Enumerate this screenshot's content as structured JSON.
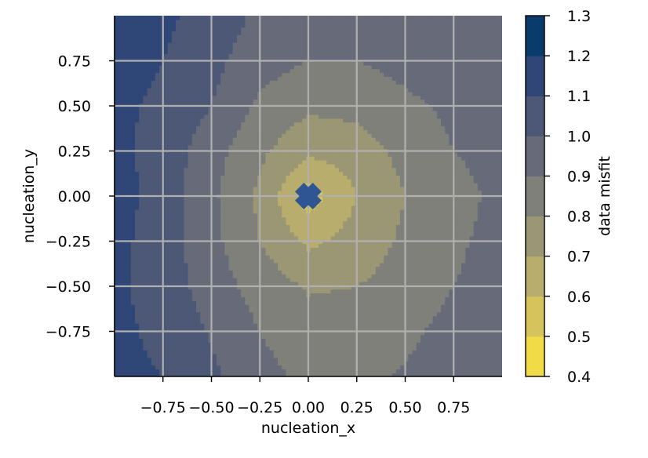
{
  "chart_data": {
    "type": "contour",
    "xlabel": "nucleation_x",
    "ylabel": "nucleation_y",
    "xlim": [
      -1.0,
      1.0
    ],
    "ylim": [
      -1.0,
      1.0
    ],
    "xticks": [
      -0.75,
      -0.5,
      -0.25,
      0.0,
      0.25,
      0.5,
      0.75
    ],
    "xtick_labels": [
      "−0.75",
      "−0.50",
      "−0.25",
      "0.00",
      "0.25",
      "0.50",
      "0.75"
    ],
    "yticks": [
      -0.75,
      -0.5,
      -0.25,
      0.0,
      0.25,
      0.5,
      0.75
    ],
    "ytick_labels": [
      "−0.75",
      "−0.50",
      "−0.25",
      "0.00",
      "0.25",
      "0.50",
      "0.75"
    ],
    "grid": true,
    "colormap": "cividis (reversed)",
    "colorbar": {
      "label": "data misfit",
      "levels": [
        0.4,
        0.5,
        0.6,
        0.7,
        0.8,
        0.9,
        1.0,
        1.1,
        1.2,
        1.3
      ],
      "tick_labels": [
        "0.4",
        "0.5",
        "0.6",
        "0.7",
        "0.8",
        "0.9",
        "1.0",
        "1.1",
        "1.2",
        "1.3"
      ],
      "band_colors": [
        "#f1dc48",
        "#d6c35c",
        "#b8ad6c",
        "#9b9674",
        "#80807a",
        "#676b79",
        "#4d5877",
        "#2f4677",
        "#0a3b6d"
      ]
    },
    "minimum_marker": {
      "x": 0.0,
      "y": 0.0,
      "shape": "plus",
      "color": "#2f5592"
    },
    "grid_x": [
      -1.0,
      -0.75,
      -0.5,
      -0.25,
      0.0,
      0.25,
      0.5,
      0.75,
      1.0
    ],
    "grid_y": [
      -1.0,
      -0.75,
      -0.5,
      -0.25,
      0.0,
      0.25,
      0.5,
      0.75,
      1.0
    ],
    "misfit_grid": [
      [
        1.12,
        1.1,
        1.02,
        0.93,
        0.88,
        0.88,
        0.91,
        0.95,
        0.98
      ],
      [
        1.12,
        1.08,
        0.99,
        0.9,
        0.84,
        0.85,
        0.88,
        0.93,
        0.97
      ],
      [
        1.12,
        1.06,
        0.95,
        0.86,
        0.79,
        0.8,
        0.84,
        0.9,
        0.95
      ],
      [
        1.13,
        1.05,
        0.93,
        0.8,
        0.68,
        0.74,
        0.82,
        0.88,
        0.94
      ],
      [
        1.14,
        1.06,
        0.92,
        0.78,
        0.55,
        0.7,
        0.8,
        0.86,
        0.93
      ],
      [
        1.13,
        1.06,
        0.94,
        0.82,
        0.72,
        0.75,
        0.83,
        0.9,
        0.94
      ],
      [
        1.12,
        1.08,
        1.0,
        0.88,
        0.82,
        0.83,
        0.88,
        0.92,
        0.95
      ],
      [
        1.14,
        1.1,
        1.03,
        0.94,
        0.9,
        0.9,
        0.93,
        0.96,
        0.98
      ],
      [
        1.15,
        1.12,
        1.06,
        0.98,
        0.94,
        0.93,
        0.95,
        0.98,
        0.99
      ]
    ]
  }
}
